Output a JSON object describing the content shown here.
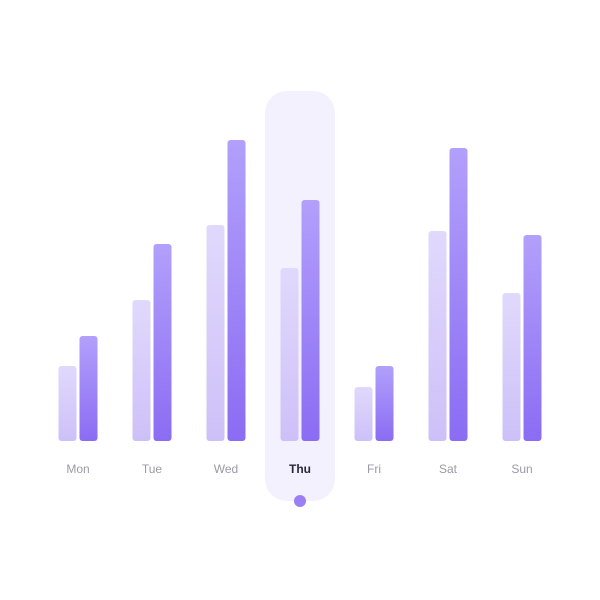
{
  "chart_data": {
    "type": "bar",
    "categories": [
      "Mon",
      "Tue",
      "Wed",
      "Thu",
      "Fri",
      "Sat",
      "Sun"
    ],
    "series": [
      {
        "values": [
          75,
          141,
          216,
          173,
          54,
          210,
          148
        ]
      },
      {
        "values": [
          105,
          197,
          301,
          241,
          75,
          293,
          206
        ]
      }
    ],
    "ylim": [
      0,
      350
    ],
    "grid": false,
    "legend": "none",
    "selected_category": "Thu"
  },
  "colors": {
    "series_light_top": "#e1d9fc",
    "series_light_bottom": "#cdc0f8",
    "series_dark_top": "#b2a0fb",
    "series_dark_bottom": "#8b6cf3",
    "highlight_panel": "#f3f1fe",
    "indicator_dot": "#9b80f5",
    "tick_label": "#9b9aa6",
    "tick_label_active": "#2a2838"
  }
}
